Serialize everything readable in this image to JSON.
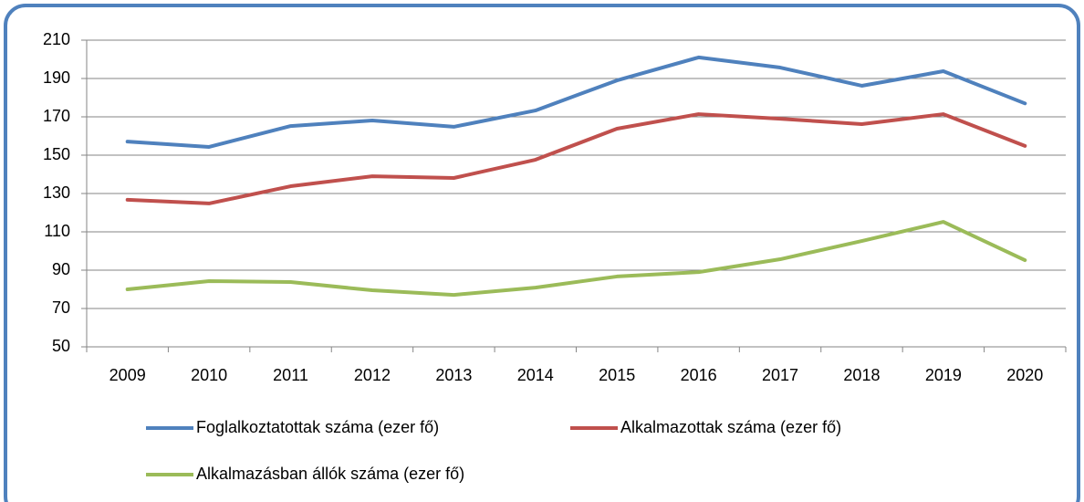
{
  "chart_data": {
    "type": "line",
    "categories": [
      "2009",
      "2010",
      "2011",
      "2012",
      "2013",
      "2014",
      "2015",
      "2016",
      "2017",
      "2018",
      "2019",
      "2020"
    ],
    "series": [
      {
        "name": "Foglalkoztatottak száma (ezer fő)",
        "color": "#4f81bd",
        "values": [
          157.1,
          154.3,
          165.2,
          168.1,
          164.8,
          173.3,
          189,
          201,
          195.7,
          186.2,
          193.8,
          177
        ]
      },
      {
        "name": "Alkalmazottak száma (ezer fő)",
        "color": "#c0504d",
        "values": [
          126.7,
          124.8,
          133.8,
          139,
          138.1,
          147.6,
          163.8,
          171.4,
          169,
          166.2,
          171.4,
          154.8
        ]
      },
      {
        "name": "Alkalmazásban állók száma (ezer fő)",
        "color": "#9bbb59",
        "values": [
          80,
          84.3,
          83.8,
          79.5,
          77.1,
          80.9,
          86.7,
          89,
          95.7,
          105.2,
          115.2,
          95.2
        ]
      }
    ],
    "ylim": [
      50,
      210
    ],
    "yticks": [
      50,
      70,
      90,
      110,
      130,
      150,
      170,
      190,
      210
    ],
    "grid": true
  }
}
